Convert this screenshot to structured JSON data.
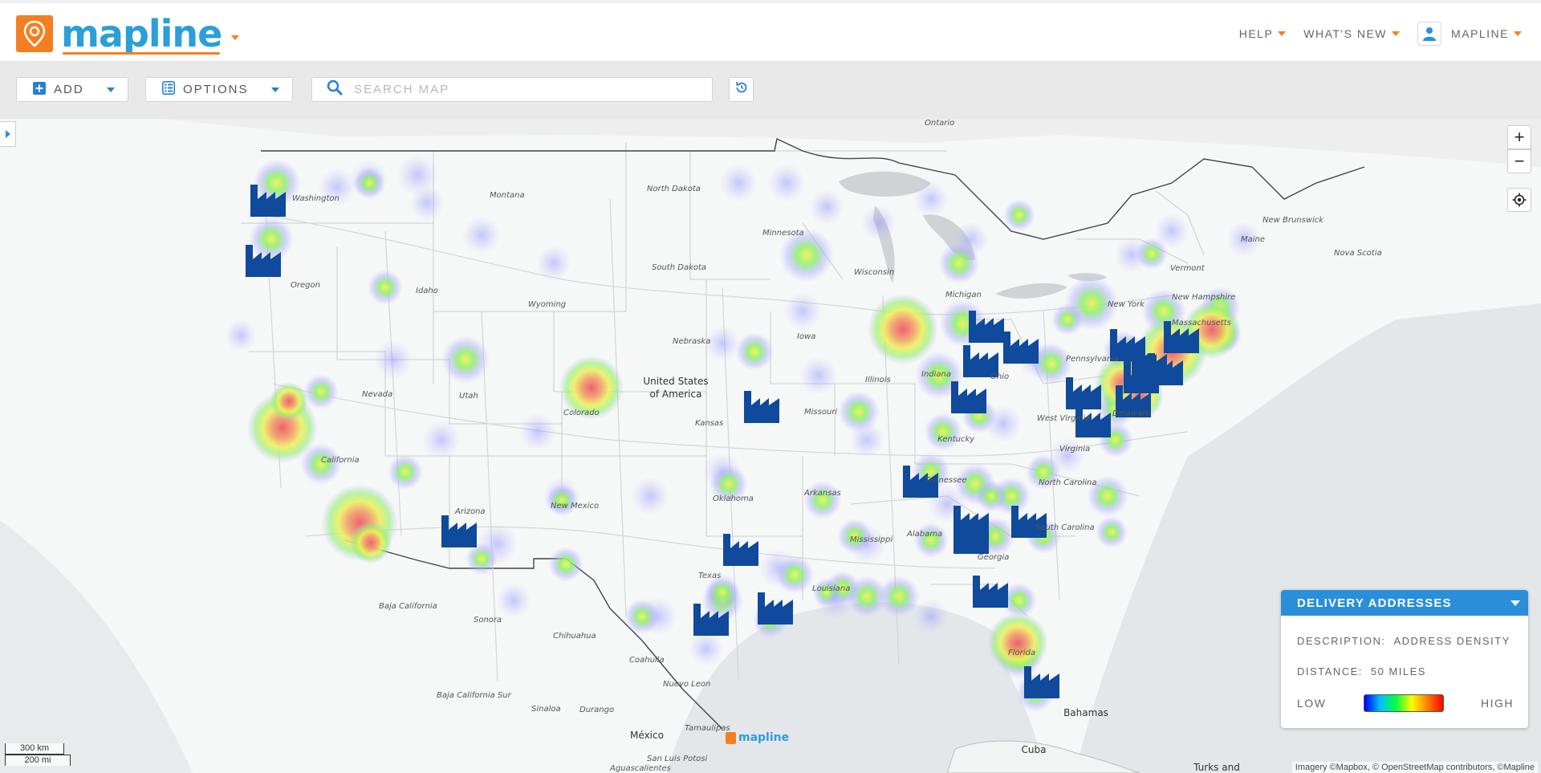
{
  "app": {
    "logo_text": "mapline",
    "brand_color": "#2a9fd8",
    "accent_color": "#f47f20"
  },
  "topnav": {
    "help": "HELP",
    "whats_new": "WHAT'S NEW",
    "user": "MAPLINE"
  },
  "toolbar": {
    "add_label": "ADD",
    "options_label": "OPTIONS",
    "search_placeholder": "SEARCH MAP"
  },
  "map": {
    "countries": [
      {
        "name": "United States\nof America",
        "line1": "United States",
        "line2": "of America"
      },
      {
        "name": "México"
      },
      {
        "name": "Cuba"
      },
      {
        "name": "Bahamas"
      }
    ],
    "labels": {
      "united_states_1": "United States",
      "united_states_2": "of America",
      "mexico": "México",
      "cuba": "Cuba",
      "bahamas": "Bahamas",
      "turks": "Turks and"
    },
    "regions": [
      "Ontario",
      "Washington",
      "Montana",
      "North Dakota",
      "Minnesota",
      "South Dakota",
      "Wisconsin",
      "Michigan",
      "Oregon",
      "Idaho",
      "Wyoming",
      "Nebraska",
      "Iowa",
      "Illinois",
      "Indiana",
      "Ohio",
      "Pennsylvania",
      "New York",
      "Vermont",
      "New Hampshire",
      "Massachusetts",
      "Maine",
      "New Brunswick",
      "Nova Scotia",
      "Nevada",
      "Utah",
      "Colorado",
      "Kansas",
      "Missouri",
      "Kentucky",
      "West Virginia",
      "Virginia",
      "Delaware",
      "California",
      "Arizona",
      "New Mexico",
      "Oklahoma",
      "Arkansas",
      "Tennessee",
      "North Carolina",
      "South Carolina",
      "Mississippi",
      "Alabama",
      "Georgia",
      "Texas",
      "Louisiana",
      "Florida",
      "Baja California",
      "Sonora",
      "Chihuahua",
      "Coahuila",
      "Nuevo Leon",
      "Baja California Sur",
      "Sinaloa",
      "Durango",
      "Tamaulipas",
      "San Luis Potosi",
      "Aguascalientes"
    ],
    "scale_km": "300 km",
    "scale_mi": "200 mi",
    "attribution": "Imagery ©Mapbox, © OpenStreetMap contributors, ©Mapline",
    "watermark": "mapline",
    "zoom_in": "+",
    "zoom_out": "−"
  },
  "legend": {
    "title": "DELIVERY ADDRESSES",
    "description_label": "DESCRIPTION:",
    "description_value": "ADDRESS DENSITY",
    "distance_label": "DISTANCE:",
    "distance_value": "50 MILES",
    "low_label": "LOW",
    "high_label": "HIGH"
  }
}
